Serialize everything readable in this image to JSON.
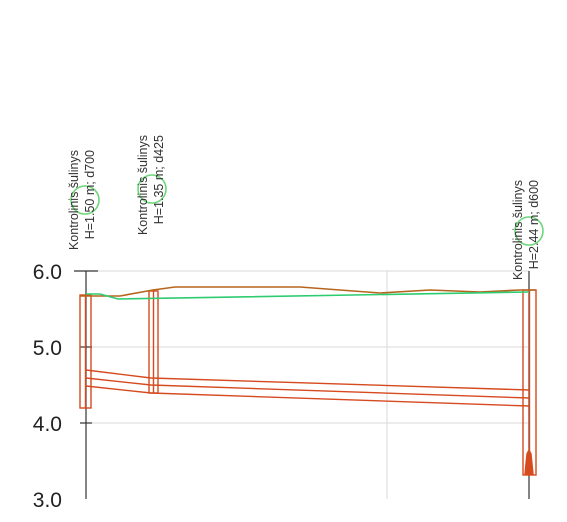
{
  "profile": {
    "y_axis": {
      "ticks": [
        {
          "value": 6.0,
          "label": "6.0"
        },
        {
          "value": 5.0,
          "label": "5.0"
        },
        {
          "value": 4.0,
          "label": "4.0"
        },
        {
          "value": 3.0,
          "label": "3.0"
        }
      ],
      "range": [
        3.0,
        6.0
      ]
    },
    "colors": {
      "ground": "#b5651d",
      "water": "#2ecc71",
      "pipe": "#d64a1f",
      "marker": "#6ed67a",
      "grid": "#d9d9d9",
      "axis": "#333333"
    },
    "wells": [
      {
        "name": "Kontrolinis šulinys",
        "detail": "H=1.50 m; d700"
      },
      {
        "name": "Kontrolinis šulinys",
        "detail": "H=1.35 m; d425"
      },
      {
        "name": "Kontrolinis šulinys",
        "detail": "H=2.44 m; d600"
      }
    ]
  }
}
